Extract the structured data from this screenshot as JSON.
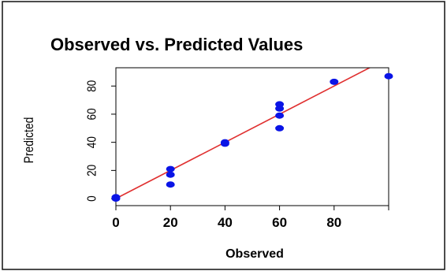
{
  "chart_data": {
    "type": "scatter",
    "title": "Observed vs. Predicted Values",
    "xlabel": "Observed",
    "ylabel": "Predicted",
    "xlim": [
      0,
      100
    ],
    "ylim": [
      -5,
      93
    ],
    "x_ticks": [
      0,
      20,
      40,
      60,
      80
    ],
    "y_ticks": [
      0,
      20,
      40,
      60,
      80
    ],
    "points": [
      {
        "x": 0,
        "y": 0
      },
      {
        "x": 0,
        "y": 1
      },
      {
        "x": 20,
        "y": 10
      },
      {
        "x": 20,
        "y": 17
      },
      {
        "x": 20,
        "y": 21
      },
      {
        "x": 40,
        "y": 39
      },
      {
        "x": 40,
        "y": 40
      },
      {
        "x": 60,
        "y": 50
      },
      {
        "x": 60,
        "y": 59
      },
      {
        "x": 60,
        "y": 64
      },
      {
        "x": 60,
        "y": 67
      },
      {
        "x": 80,
        "y": 83
      },
      {
        "x": 100,
        "y": 87
      }
    ],
    "reference_line": {
      "slope": 1,
      "intercept": 0,
      "color": "#e03030"
    },
    "point_color": "#0a14e6",
    "grid": false,
    "legend": "none"
  }
}
